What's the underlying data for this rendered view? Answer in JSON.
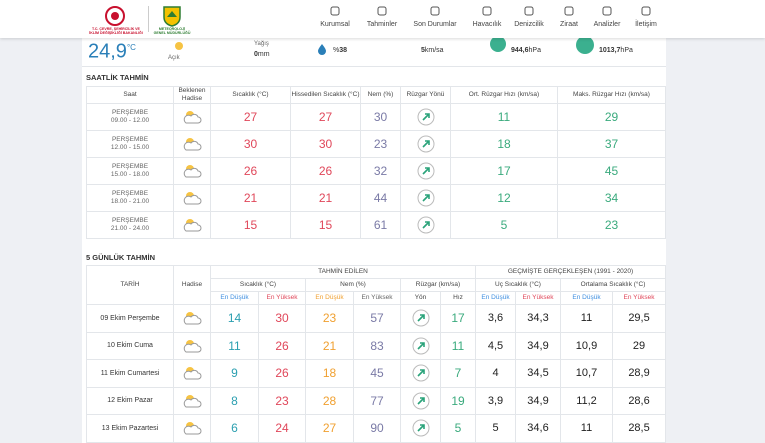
{
  "header": {
    "logo1": [
      "T.C. ÇEVRE, ŞEHİRCİLİK VE",
      "İKLİM DEĞİŞİKLİĞİ BAKANLIĞI"
    ],
    "logo2": [
      "METEOROLOJİ",
      "GENEL MÜDÜRLÜĞÜ"
    ],
    "nav": [
      "Kurumsal",
      "Tahminler",
      "Son Durumlar",
      "Havacılık",
      "Denizcilik",
      "Ziraat",
      "Analizler",
      "İletişim"
    ]
  },
  "current": {
    "temperature": "24,9",
    "unit": "°C",
    "condition": "Açık",
    "precip_label": "Yağış",
    "precip": "0",
    "precip_unit": "mm",
    "humidity_prefix": "%",
    "humidity": "38",
    "wind": "5",
    "wind_unit": "km/sa",
    "pressure": "944,6",
    "pressure_unit": "hPa",
    "sea_pressure": "1013,7",
    "sea_pressure_unit": "hPa"
  },
  "hourly": {
    "title": "SAATLİK TAHMİN",
    "headers": [
      "Saat",
      "Beklenen Hadise",
      "Sıcaklık (°C)",
      "Hissedilen Sıcaklık (°C)",
      "Nem (%)",
      "Rüzgar Yönü",
      "Ort. Rüzgar Hızı (km/sa)",
      "Maks. Rüzgar Hızı (km/sa)"
    ],
    "rows": [
      [
        "PERŞEMBE",
        "09.00 - 12.00",
        27,
        27,
        30,
        11,
        29
      ],
      [
        "PERŞEMBE",
        "12.00 - 15.00",
        30,
        30,
        23,
        18,
        37
      ],
      [
        "PERŞEMBE",
        "15.00 - 18.00",
        26,
        26,
        32,
        17,
        45
      ],
      [
        "PERŞEMBE",
        "18.00 - 21.00",
        21,
        21,
        44,
        12,
        34
      ],
      [
        "PERŞEMBE",
        "21.00 - 24.00",
        15,
        15,
        61,
        5,
        23
      ]
    ]
  },
  "daily": {
    "title": "5 GÜNLÜK TAHMİN",
    "group_headers": [
      "TAHMİN EDİLEN",
      "GEÇMİŞTE GERÇEKLEŞEN (1991 - 2020)"
    ],
    "headers": [
      "TARİH",
      "Hadise",
      "Sıcaklık (°C)",
      "Nem (%)",
      "Rüzgar (km/sa)",
      "Uç Sıcaklık (°C)",
      "Ortalama Sıcaklık (°C)"
    ],
    "sub_headers": [
      "En Düşük",
      "En Yüksek",
      "En Düşük",
      "En Yüksek",
      "Yön",
      "Hız",
      "En Düşük",
      "En Yüksek",
      "En Düşük",
      "En Yüksek"
    ],
    "rows": [
      [
        "09 Ekim Perşembe",
        14,
        30,
        23,
        57,
        17,
        "3,6",
        "34,3",
        11,
        "29,5"
      ],
      [
        "10 Ekim Cuma",
        11,
        26,
        21,
        83,
        11,
        "4,5",
        "34,9",
        "10,9",
        29
      ],
      [
        "11 Ekim Cumartesi",
        9,
        26,
        18,
        45,
        7,
        4,
        "34,5",
        "10,7",
        "28,9"
      ],
      [
        "12 Ekim Pazar",
        8,
        23,
        28,
        77,
        19,
        "3,9",
        "34,9",
        "11,2",
        "28,6"
      ],
      [
        "13 Ekim Pazartesi",
        6,
        24,
        27,
        90,
        5,
        5,
        "34,6",
        11,
        "28,5"
      ]
    ]
  }
}
